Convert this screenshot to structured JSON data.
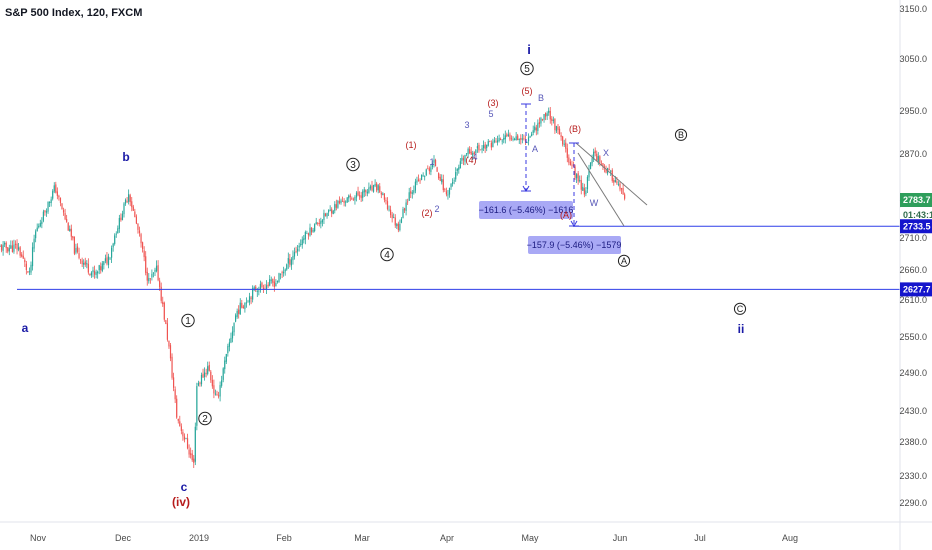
{
  "header": {
    "title": "S&P 500 Index, 120, FXCM"
  },
  "colors": {
    "up": "#26a69a",
    "down": "#ef5350",
    "hline": "#2f3ee8",
    "navy": "#1a1aa6",
    "crimson": "#b71c1c",
    "measure": "#a9a9f5",
    "measure_text": "#1b1b80",
    "accent_tag": "#1515cc",
    "green_tag": "#2e9e5b"
  },
  "chart_data": {
    "type": "candlestick",
    "title": "S&P 500 Index, 120, FXCM",
    "xlabel": "",
    "ylabel": "",
    "ylim": [
      2266,
      3168
    ],
    "y_ticks": [
      "3150.0",
      "3050.0",
      "2950.0",
      "2870.0",
      "2790.0",
      "2710.0",
      "2660.0",
      "2610.0",
      "2550.0",
      "2490.0",
      "2430.0",
      "2380.0",
      "2330.0",
      "2290.0"
    ],
    "x_ticks": [
      "Nov",
      "Dec",
      "2019",
      "Feb",
      "Mar",
      "Apr",
      "May",
      "Jun",
      "Jul",
      "Aug"
    ],
    "price_path": [
      {
        "date": "2018-10-25",
        "price": 2695
      },
      {
        "date": "2018-10-29",
        "price": 2650
      },
      {
        "date": "2018-10-31",
        "price": 2720
      },
      {
        "date": "2018-11-07",
        "price": 2810
      },
      {
        "date": "2018-11-14",
        "price": 2690
      },
      {
        "date": "2018-11-21",
        "price": 2650
      },
      {
        "date": "2018-11-26",
        "price": 2680
      },
      {
        "date": "2018-12-03",
        "price": 2800
      },
      {
        "date": "2018-12-10",
        "price": 2640
      },
      {
        "date": "2018-12-13",
        "price": 2660
      },
      {
        "date": "2018-12-17",
        "price": 2540
      },
      {
        "date": "2018-12-20",
        "price": 2420
      },
      {
        "date": "2018-12-26",
        "price": 2346
      },
      {
        "date": "2018-12-27",
        "price": 2470
      },
      {
        "date": "2018-12-31",
        "price": 2500
      },
      {
        "date": "2019-01-03",
        "price": 2445
      },
      {
        "date": "2019-01-10",
        "price": 2590
      },
      {
        "date": "2019-01-17",
        "price": 2630
      },
      {
        "date": "2019-01-24",
        "price": 2640
      },
      {
        "date": "2019-02-04",
        "price": 2720
      },
      {
        "date": "2019-02-15",
        "price": 2780
      },
      {
        "date": "2019-02-22",
        "price": 2795
      },
      {
        "date": "2019-03-01",
        "price": 2810
      },
      {
        "date": "2019-03-08",
        "price": 2730
      },
      {
        "date": "2019-03-12",
        "price": 2800
      },
      {
        "date": "2019-03-21",
        "price": 2855
      },
      {
        "date": "2019-03-25",
        "price": 2795
      },
      {
        "date": "2019-04-01",
        "price": 2870
      },
      {
        "date": "2019-04-10",
        "price": 2890
      },
      {
        "date": "2019-04-18",
        "price": 2905
      },
      {
        "date": "2019-04-22",
        "price": 2895
      },
      {
        "date": "2019-04-30",
        "price": 2950
      },
      {
        "date": "2019-05-06",
        "price": 2880
      },
      {
        "date": "2019-05-09",
        "price": 2840
      },
      {
        "date": "2019-05-13",
        "price": 2800
      },
      {
        "date": "2019-05-16",
        "price": 2875
      },
      {
        "date": "2019-05-20",
        "price": 2845
      },
      {
        "date": "2019-05-24",
        "price": 2820
      },
      {
        "date": "2019-05-29",
        "price": 2765
      },
      {
        "date": "2019-06-03",
        "price": 2733
      },
      {
        "date": "2019-06-04",
        "price": 2783.7
      }
    ],
    "horizontal_lines": [
      2733.5,
      2627.7
    ],
    "axis_tags": [
      {
        "value": "2783.7",
        "role": "last price"
      },
      {
        "value": "01:43:15",
        "role": "bar countdown"
      },
      {
        "value": "2733.5",
        "role": "horizontal line"
      },
      {
        "value": "2627.7",
        "role": "horizontal line"
      }
    ],
    "measurements": [
      {
        "label": "−161.6 (−5.46%) −1616"
      },
      {
        "label": "−157.9 (−5.46%) −1579"
      }
    ],
    "annotations": [
      {
        "text": "a"
      },
      {
        "text": "b"
      },
      {
        "text": "c"
      },
      {
        "text": "(iv)"
      },
      {
        "text": "i"
      },
      {
        "text": "ii"
      },
      {
        "text": "1"
      },
      {
        "text": "2"
      },
      {
        "text": "3"
      },
      {
        "text": "4"
      },
      {
        "text": "5"
      },
      {
        "text": "(1)"
      },
      {
        "text": "(2)"
      },
      {
        "text": "(3)"
      },
      {
        "text": "(4)"
      },
      {
        "text": "(5)"
      },
      {
        "text": "1"
      },
      {
        "text": "2"
      },
      {
        "text": "3"
      },
      {
        "text": "4"
      },
      {
        "text": "5"
      },
      {
        "text": "A"
      },
      {
        "text": "B"
      },
      {
        "text": "(A)"
      },
      {
        "text": "(B)"
      },
      {
        "text": "W"
      },
      {
        "text": "X"
      },
      {
        "text": "A"
      },
      {
        "text": "B"
      },
      {
        "text": "C"
      }
    ]
  }
}
